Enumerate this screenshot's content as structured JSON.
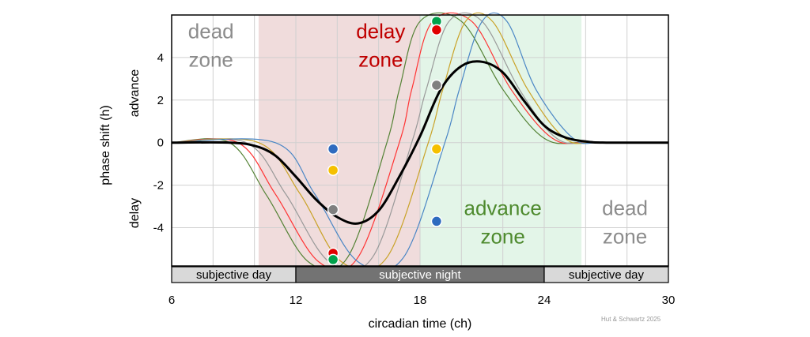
{
  "chart_data": {
    "type": "line",
    "title": "",
    "xlabel": "circadian time (ch)",
    "ylabel": "phase shift (h)",
    "ylabel_upper": "advance",
    "ylabel_lower": "delay",
    "xlim": [
      6,
      30
    ],
    "ylim": [
      -5.8,
      6
    ],
    "x_ticks": [
      6,
      12,
      18,
      24,
      30
    ],
    "y_ticks": [
      -4,
      -2,
      0,
      2,
      4
    ],
    "grid": true,
    "credit": "Hut & Schwartz 2025",
    "colors": {
      "delay_zone_bg": "#f0dcdc",
      "advance_zone_bg": "#e3f5e8",
      "delay_text": "#c00000",
      "advance_text": "#4e8a2e",
      "dead_text": "#8c8c8c",
      "mean_curve": "#000000"
    },
    "shaded_regions": [
      {
        "name": "delay",
        "x_range": [
          10.2,
          18
        ]
      },
      {
        "name": "advance",
        "x_range": [
          18,
          25.8
        ]
      }
    ],
    "zone_labels": [
      {
        "line1": "dead",
        "line2": "zone",
        "x": 7.9,
        "y": 4.9,
        "role": "dead"
      },
      {
        "line1": "delay",
        "line2": "zone",
        "x": 16.1,
        "y": 4.9,
        "role": "delay"
      },
      {
        "line1": "advance",
        "line2": "zone",
        "x": 22.0,
        "y": -3.4,
        "role": "advance"
      },
      {
        "line1": "dead",
        "line2": "zone",
        "x": 27.9,
        "y": -3.4,
        "role": "dead"
      }
    ],
    "bands": [
      {
        "label": "subjective day",
        "x_range": [
          6,
          12
        ],
        "fill": "#d9d9d9",
        "text": "#000000"
      },
      {
        "label": "subjective night",
        "x_range": [
          12,
          24
        ],
        "fill": "#737373",
        "text": "#ffffff"
      },
      {
        "label": "subjective day",
        "x_range": [
          24,
          30
        ],
        "fill": "#d9d9d9",
        "text": "#000000"
      }
    ],
    "series": [
      {
        "color": "#548235",
        "width": 1.2,
        "x": [
          6,
          8.8,
          10.6,
          12.6,
          14.5,
          16.4,
          17.0,
          18.0,
          20.0,
          22.0,
          24.0,
          26.0,
          30
        ],
        "y": [
          0,
          0,
          -2.5,
          -5.6,
          -5.4,
          0,
          2.5,
          5.7,
          5.7,
          2.5,
          0.2,
          0,
          0
        ]
      },
      {
        "color": "#ff3333",
        "width": 1.2,
        "x": [
          6,
          9.2,
          11.0,
          13.1,
          15.0,
          17.0,
          17.6,
          18.6,
          20.5,
          22.4,
          24.4,
          26.2,
          30
        ],
        "y": [
          0,
          0,
          -2.4,
          -5.6,
          -5.4,
          0,
          2.5,
          5.7,
          5.7,
          2.5,
          0.2,
          0,
          0
        ]
      },
      {
        "color": "#999999",
        "width": 1.2,
        "x": [
          6,
          9.6,
          11.5,
          13.6,
          15.7,
          17.6,
          18.3,
          19.4,
          21.0,
          22.8,
          24.6,
          26.4,
          30
        ],
        "y": [
          0,
          0,
          -2.4,
          -5.6,
          -5.4,
          0,
          2.5,
          5.7,
          5.7,
          2.5,
          0.2,
          0,
          0
        ]
      },
      {
        "color": "#c9a227",
        "width": 1.2,
        "x": [
          6,
          10.2,
          12.2,
          14.2,
          16.4,
          18.4,
          19.1,
          20.2,
          21.5,
          23.2,
          25.0,
          26.6,
          30
        ],
        "y": [
          0,
          0,
          -2.4,
          -5.6,
          -5.4,
          0,
          2.5,
          5.7,
          5.7,
          2.5,
          0.2,
          0,
          0
        ]
      },
      {
        "color": "#4a86c5",
        "width": 1.2,
        "x": [
          6,
          11.0,
          12.9,
          15.0,
          17.2,
          19.2,
          19.9,
          21.0,
          22.2,
          23.6,
          25.4,
          26.8,
          30
        ],
        "y": [
          0,
          0,
          -2.4,
          -5.6,
          -5.4,
          0,
          2.5,
          5.7,
          5.7,
          2.5,
          0.2,
          0,
          0
        ]
      },
      {
        "color": "#000000",
        "width": 3,
        "x": [
          6,
          8.8,
          10.0,
          11.0,
          12.0,
          13.0,
          14.0,
          15.0,
          16.0,
          17.0,
          18.0,
          19.0,
          20.0,
          21.0,
          22.0,
          23.0,
          24.0,
          25.0,
          26.0,
          27.0,
          30
        ],
        "y": [
          0,
          0,
          -0.15,
          -0.6,
          -1.6,
          -2.7,
          -3.5,
          -3.8,
          -3.2,
          -1.6,
          0.3,
          2.5,
          3.6,
          3.8,
          3.3,
          2.0,
          0.8,
          0.25,
          0.05,
          0,
          0
        ]
      }
    ],
    "markers": [
      {
        "x": 13.8,
        "y": -0.3,
        "color": "#2e6bbf"
      },
      {
        "x": 13.8,
        "y": -1.3,
        "color": "#f5c000"
      },
      {
        "x": 13.8,
        "y": -3.15,
        "color": "#808080"
      },
      {
        "x": 13.8,
        "y": -5.2,
        "color": "#e00000"
      },
      {
        "x": 13.8,
        "y": -5.5,
        "color": "#00a14b"
      },
      {
        "x": 18.8,
        "y": 5.7,
        "color": "#00a14b"
      },
      {
        "x": 18.8,
        "y": 5.3,
        "color": "#e00000"
      },
      {
        "x": 18.8,
        "y": 2.7,
        "color": "#808080"
      },
      {
        "x": 18.8,
        "y": -0.3,
        "color": "#f5c000"
      },
      {
        "x": 18.8,
        "y": -3.7,
        "color": "#2e6bbf"
      }
    ]
  }
}
